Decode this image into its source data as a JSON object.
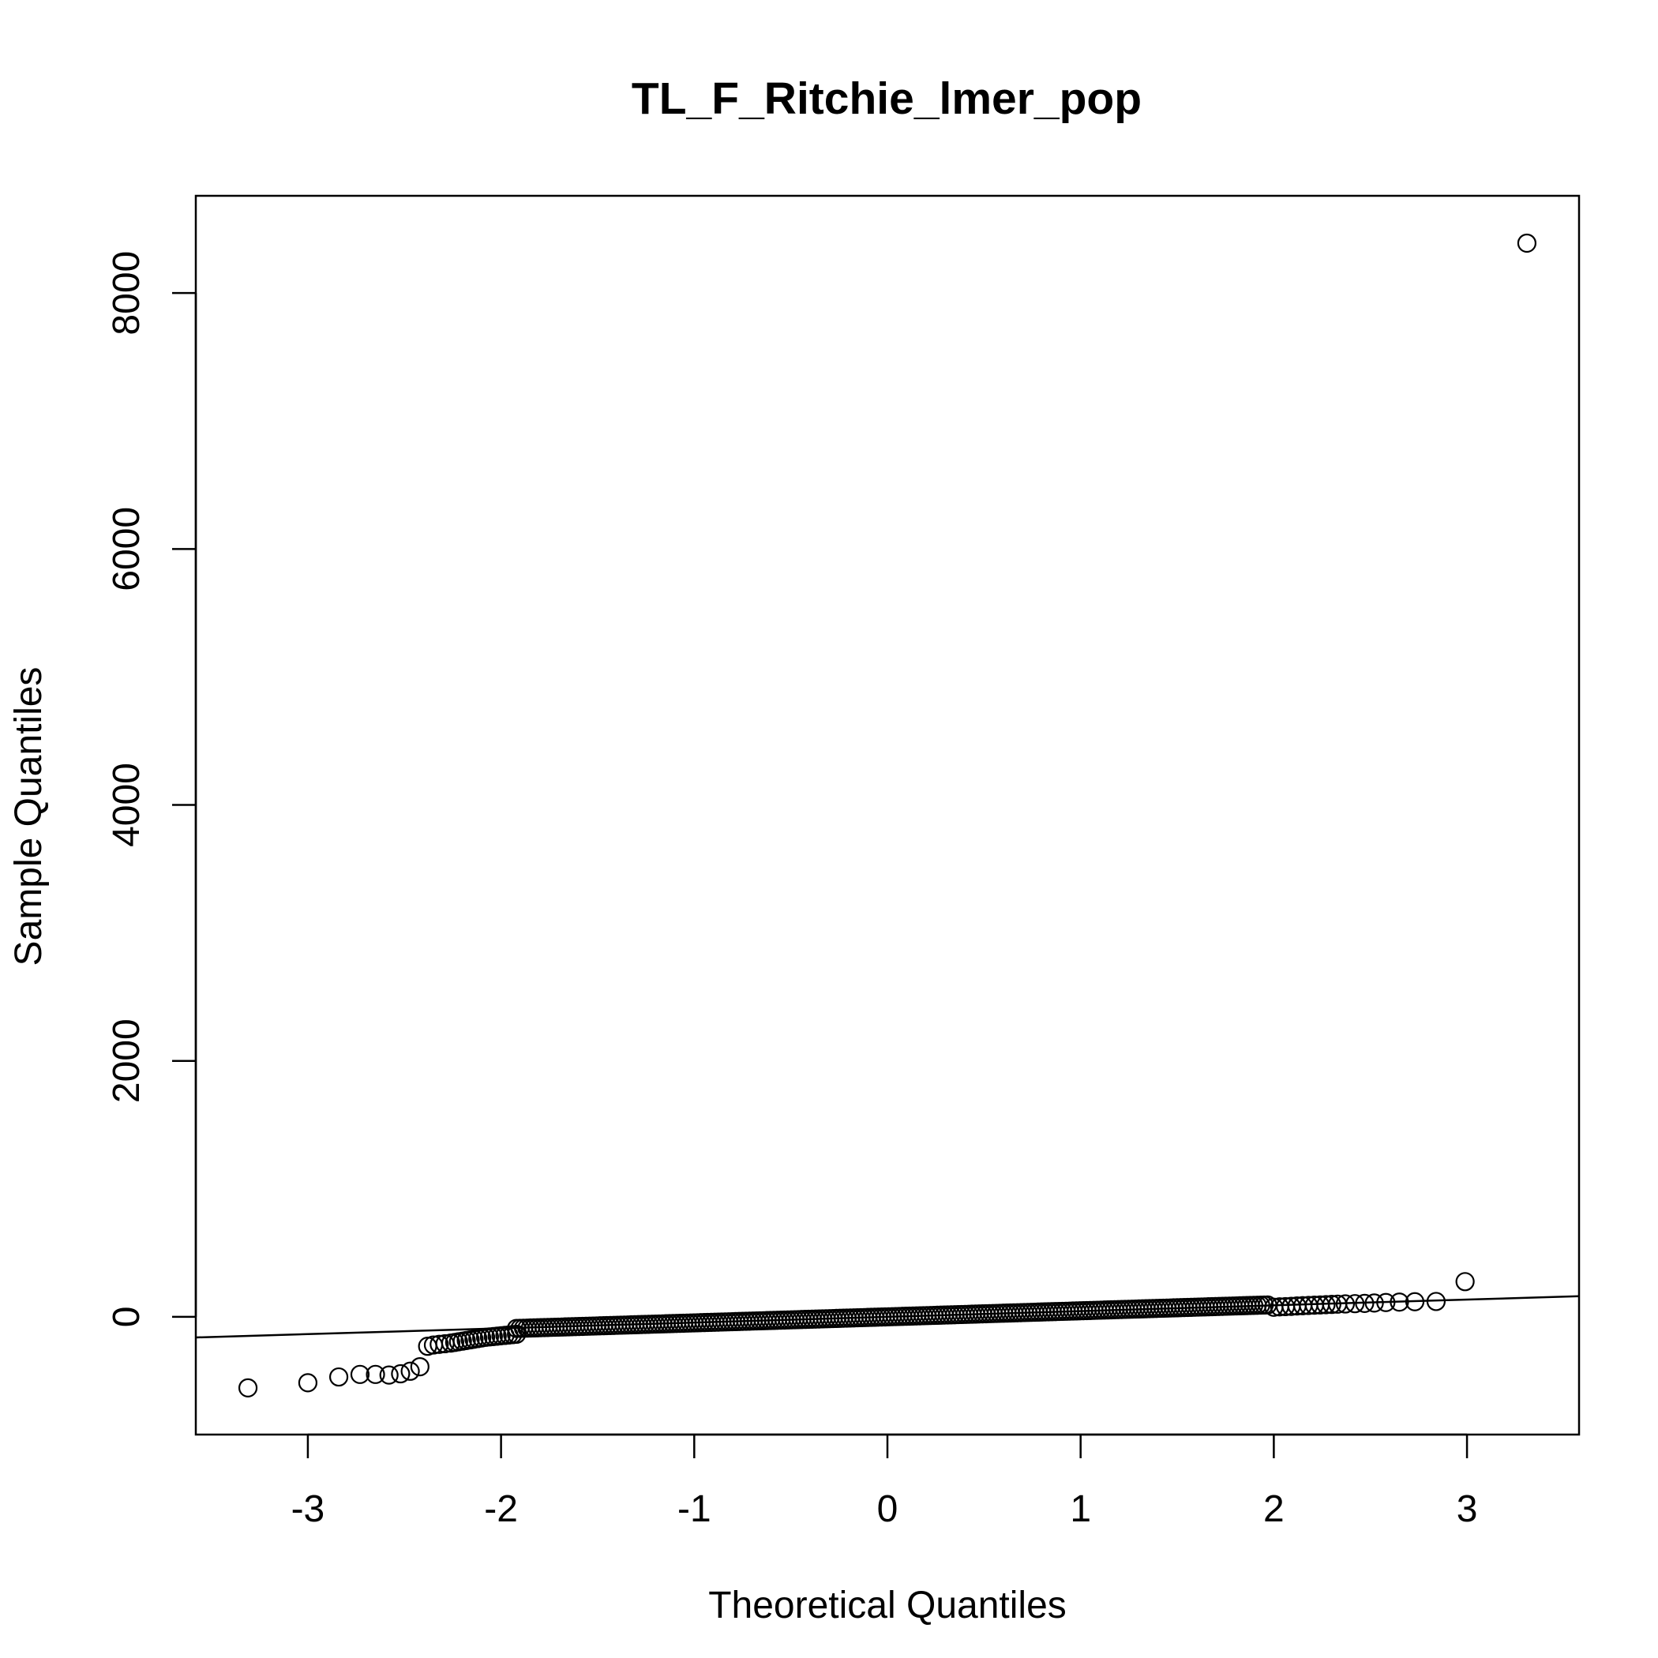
{
  "chart_data": {
    "type": "scatter",
    "title": "TL_F_Ritchie_lmer_pop",
    "xlabel": "Theoretical Quantiles",
    "ylabel": "Sample Quantiles",
    "xlim": [
      -3.58,
      3.58
    ],
    "ylim": [
      -920,
      8760
    ],
    "x_ticks": [
      -3,
      -2,
      -1,
      0,
      1,
      2,
      3
    ],
    "y_ticks": [
      0,
      2000,
      4000,
      6000,
      8000
    ],
    "grid": false,
    "legend": "none",
    "series": [
      {
        "x": [
          -3.31,
          -3.0,
          -2.84,
          -2.73,
          -2.65,
          -2.58,
          -2.52,
          -2.47,
          -2.42,
          -2.38,
          -2.35,
          -2.32,
          -2.29,
          -2.26,
          -2.24,
          -2.22,
          -2.2,
          -2.18,
          -2.16,
          -2.14,
          -2.12,
          -2.1,
          -2.08,
          -2.06,
          -2.04,
          -2.02,
          -2.0,
          -1.98,
          -1.96,
          -1.94,
          -1.92,
          2.0,
          2.03,
          2.06,
          2.09,
          2.12,
          2.15,
          2.18,
          2.21,
          2.24,
          2.27,
          2.3,
          2.33,
          2.37,
          2.42,
          2.47,
          2.52,
          2.58,
          2.65,
          2.73,
          2.84,
          2.99,
          3.31
        ],
        "y": [
          -555,
          -515,
          -470,
          -450,
          -450,
          -455,
          -445,
          -425,
          -390,
          -230,
          -220,
          -215,
          -210,
          -205,
          -200,
          -195,
          -190,
          -185,
          -180,
          -175,
          -170,
          -165,
          -160,
          -157,
          -154,
          -151,
          -148,
          -145,
          -142,
          -139,
          -136,
          75,
          78,
          80,
          82,
          85,
          87,
          89,
          91,
          93,
          95,
          97,
          99,
          101,
          103,
          105,
          108,
          112,
          115,
          118,
          120,
          275,
          8390
        ]
      }
    ],
    "reference_line": {
      "intercept": 0,
      "slope": 45
    }
  }
}
